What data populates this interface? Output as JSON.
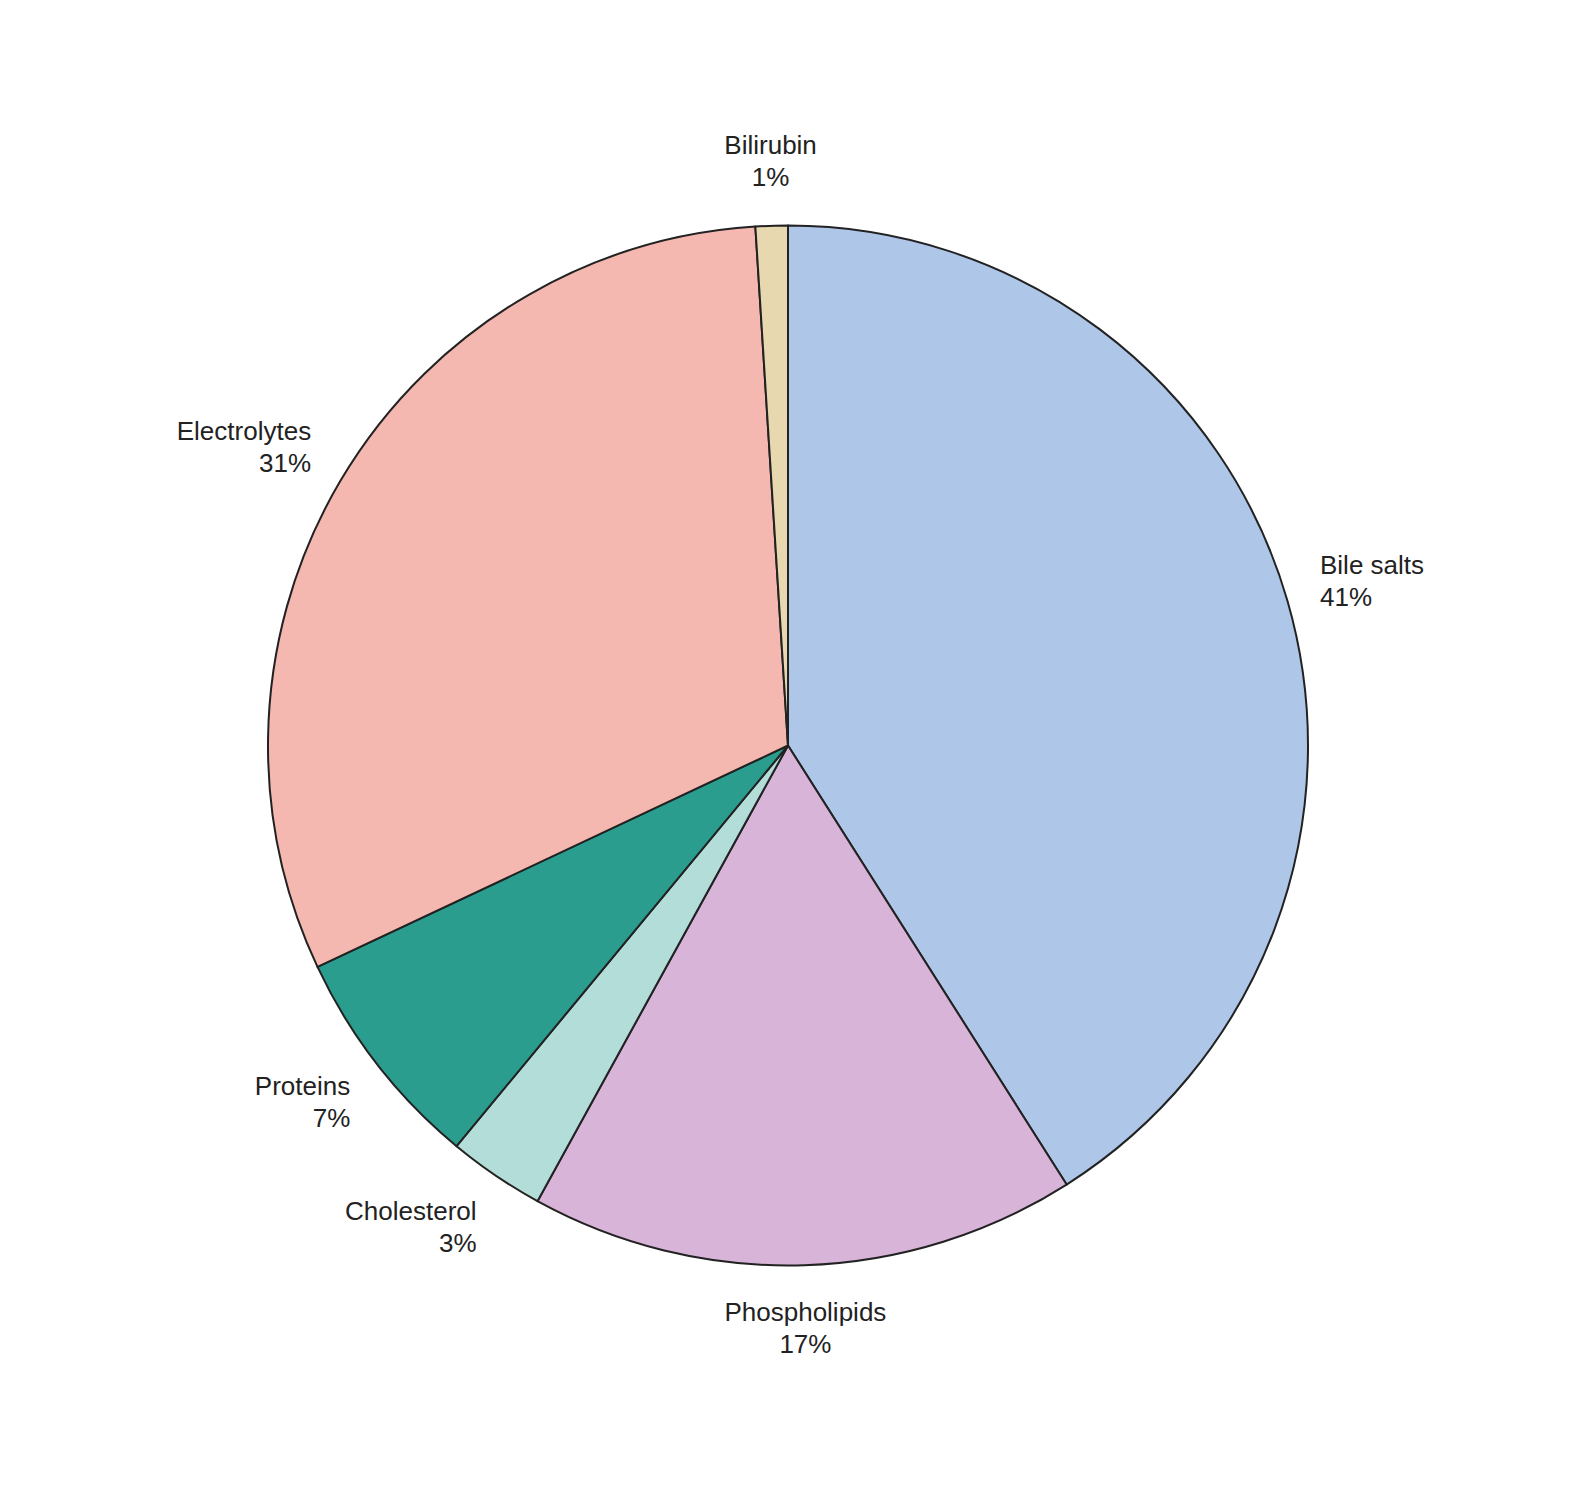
{
  "chart_data": {
    "type": "pie",
    "categories": [
      "Bile salts",
      "Phospholipids",
      "Cholesterol",
      "Proteins",
      "Electrolytes",
      "Bilirubin"
    ],
    "values": [
      41,
      17,
      3,
      7,
      31,
      1
    ],
    "value_labels": [
      "41%",
      "17%",
      "3%",
      "7%",
      "31%",
      "1%"
    ],
    "colors": [
      "#aec6e8",
      "#d8b4d8",
      "#b2ddd8",
      "#2a9d8f",
      "#f5b8b0",
      "#e8d8b0"
    ],
    "data_labels": true
  }
}
